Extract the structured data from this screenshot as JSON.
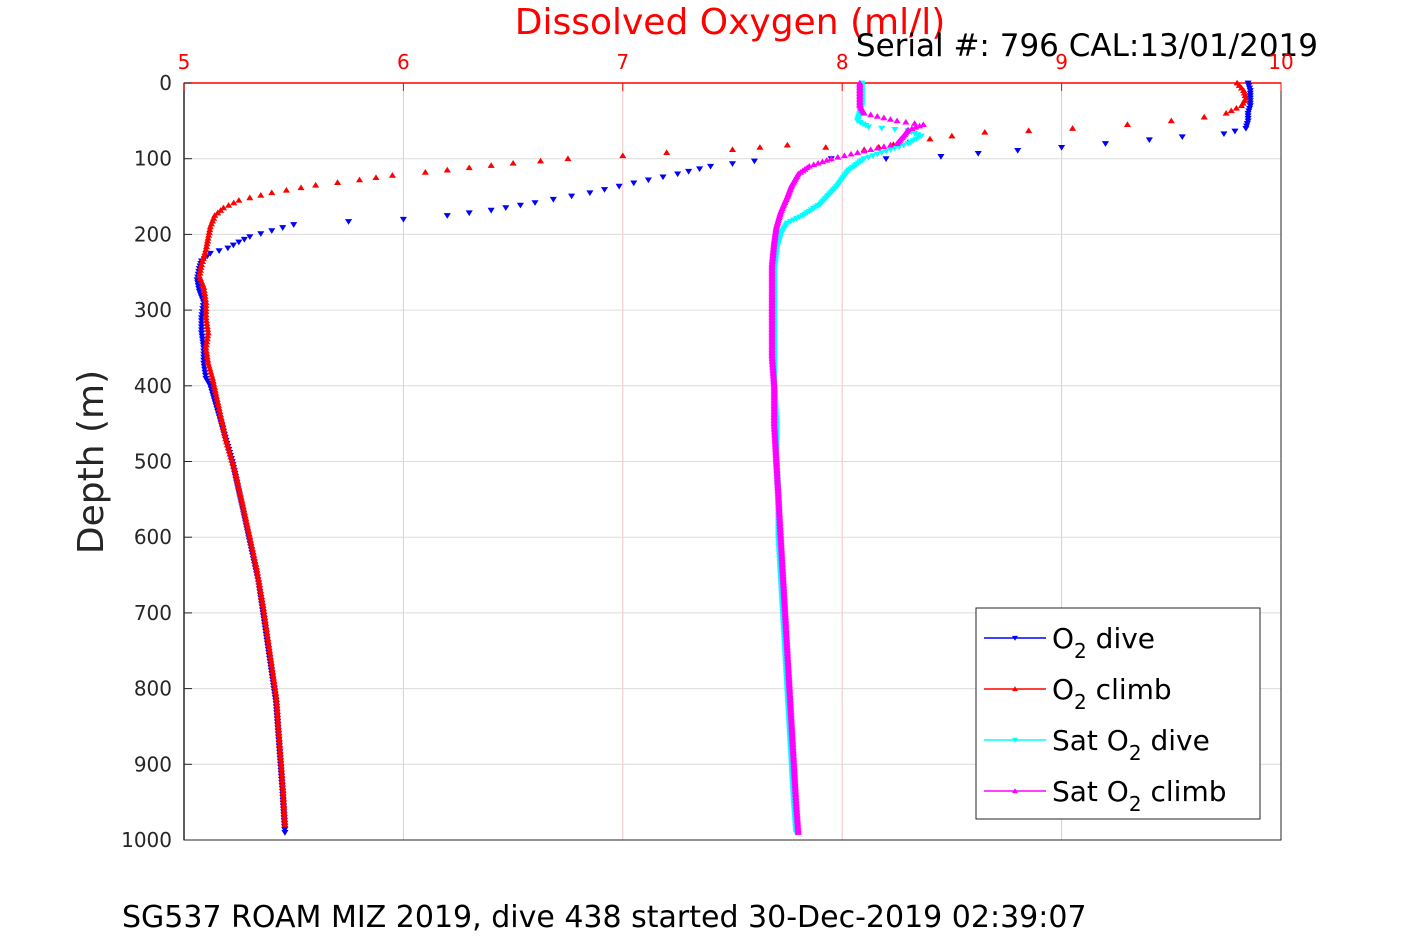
{
  "chart_data": {
    "type": "scatter",
    "title": "Dissolved Oxygen (ml/l)",
    "subtitle": "Serial #: 796  CAL:13/01/2019",
    "footer": "SG537 ROAM MIZ 2019, dive 438 started 30-Dec-2019 02:39:07",
    "xlabel": "Dissolved Oxygen (ml/l)",
    "ylabel": "Depth (m)",
    "xlim": [
      5,
      10
    ],
    "ylim": [
      0,
      1000
    ],
    "y_reversed": true,
    "x_axis_position": "top",
    "x_ticks": [
      "5",
      "6",
      "7",
      "8",
      "9",
      "10"
    ],
    "y_ticks": [
      "0",
      "100",
      "200",
      "300",
      "400",
      "500",
      "600",
      "700",
      "800",
      "900",
      "1000"
    ],
    "grid": true,
    "legend_position": "bottom-right",
    "series": [
      {
        "name": "O2 dive",
        "legend_main": "O",
        "legend_sub": "2",
        "legend_rest": " dive",
        "color": "#0000ff",
        "marker": "triangle-down",
        "points": [
          [
            9.85,
            0
          ],
          [
            9.86,
            10
          ],
          [
            9.86,
            20
          ],
          [
            9.86,
            30
          ],
          [
            9.85,
            40
          ],
          [
            9.85,
            50
          ],
          [
            9.84,
            60
          ],
          [
            9.74,
            67
          ],
          [
            9.55,
            71
          ],
          [
            9.4,
            75
          ],
          [
            9.2,
            80
          ],
          [
            9.0,
            85
          ],
          [
            8.8,
            89
          ],
          [
            8.62,
            93
          ],
          [
            8.45,
            97
          ],
          [
            8.2,
            100
          ],
          [
            7.95,
            100
          ],
          [
            7.6,
            103
          ],
          [
            7.4,
            110
          ],
          [
            7.25,
            120
          ],
          [
            7.05,
            132
          ],
          [
            6.85,
            145
          ],
          [
            6.6,
            158
          ],
          [
            6.4,
            168
          ],
          [
            6.2,
            175
          ],
          [
            6.0,
            180
          ],
          [
            5.75,
            183
          ],
          [
            5.5,
            187
          ],
          [
            5.4,
            195
          ],
          [
            5.3,
            203
          ],
          [
            5.25,
            210
          ],
          [
            5.2,
            218
          ],
          [
            5.12,
            225
          ],
          [
            5.08,
            235
          ],
          [
            5.07,
            245
          ],
          [
            5.06,
            260
          ],
          [
            5.07,
            275
          ],
          [
            5.09,
            290
          ],
          [
            5.08,
            310
          ],
          [
            5.08,
            330
          ],
          [
            5.09,
            350
          ],
          [
            5.09,
            370
          ],
          [
            5.1,
            390
          ],
          [
            5.12,
            400
          ],
          [
            5.15,
            430
          ],
          [
            5.18,
            460
          ],
          [
            5.22,
            500
          ],
          [
            5.25,
            540
          ],
          [
            5.28,
            580
          ],
          [
            5.31,
            620
          ],
          [
            5.34,
            660
          ],
          [
            5.36,
            700
          ],
          [
            5.38,
            740
          ],
          [
            5.4,
            780
          ],
          [
            5.42,
            820
          ],
          [
            5.43,
            860
          ],
          [
            5.44,
            900
          ],
          [
            5.45,
            940
          ],
          [
            5.46,
            990
          ]
        ]
      },
      {
        "name": "O2 climb",
        "legend_main": "O",
        "legend_sub": "2",
        "legend_rest": " climb",
        "color": "#ff0000",
        "marker": "triangle-up",
        "points": [
          [
            9.8,
            0
          ],
          [
            9.83,
            10
          ],
          [
            9.84,
            20
          ],
          [
            9.82,
            30
          ],
          [
            9.75,
            40
          ],
          [
            9.65,
            45
          ],
          [
            9.5,
            50
          ],
          [
            9.3,
            55
          ],
          [
            9.05,
            60
          ],
          [
            8.85,
            63
          ],
          [
            8.65,
            65
          ],
          [
            8.5,
            70
          ],
          [
            8.3,
            78
          ],
          [
            8.1,
            88
          ],
          [
            7.75,
            82
          ],
          [
            7.5,
            88
          ],
          [
            7.2,
            92
          ],
          [
            7.0,
            96
          ],
          [
            6.75,
            100
          ],
          [
            6.5,
            106
          ],
          [
            6.3,
            112
          ],
          [
            6.1,
            118
          ],
          [
            5.95,
            122
          ],
          [
            5.8,
            128
          ],
          [
            5.6,
            135
          ],
          [
            5.4,
            145
          ],
          [
            5.25,
            155
          ],
          [
            5.18,
            165
          ],
          [
            5.14,
            175
          ],
          [
            5.12,
            190
          ],
          [
            5.11,
            205
          ],
          [
            5.1,
            220
          ],
          [
            5.08,
            240
          ],
          [
            5.07,
            255
          ],
          [
            5.09,
            270
          ],
          [
            5.1,
            290
          ],
          [
            5.1,
            310
          ],
          [
            5.11,
            330
          ],
          [
            5.1,
            350
          ],
          [
            5.11,
            370
          ],
          [
            5.13,
            390
          ],
          [
            5.16,
            430
          ],
          [
            5.19,
            470
          ],
          [
            5.23,
            510
          ],
          [
            5.27,
            560
          ],
          [
            5.3,
            600
          ],
          [
            5.33,
            640
          ],
          [
            5.36,
            690
          ],
          [
            5.38,
            730
          ],
          [
            5.4,
            770
          ],
          [
            5.42,
            810
          ],
          [
            5.43,
            850
          ],
          [
            5.44,
            890
          ],
          [
            5.45,
            930
          ],
          [
            5.46,
            980
          ]
        ]
      },
      {
        "name": "Sat O2 dive",
        "legend_main": "Sat O",
        "legend_sub": "2",
        "legend_rest": " dive",
        "color": "#00ffff",
        "marker": "triangle-down",
        "points": [
          [
            8.09,
            0
          ],
          [
            8.09,
            10
          ],
          [
            8.09,
            20
          ],
          [
            8.09,
            30
          ],
          [
            8.08,
            40
          ],
          [
            8.07,
            50
          ],
          [
            8.12,
            58
          ],
          [
            8.3,
            63
          ],
          [
            8.36,
            70
          ],
          [
            8.3,
            80
          ],
          [
            8.2,
            90
          ],
          [
            8.1,
            100
          ],
          [
            8.03,
            115
          ],
          [
            7.98,
            135
          ],
          [
            7.9,
            160
          ],
          [
            7.82,
            175
          ],
          [
            7.75,
            185
          ],
          [
            7.72,
            200
          ],
          [
            7.7,
            220
          ],
          [
            7.69,
            250
          ],
          [
            7.69,
            300
          ],
          [
            7.69,
            350
          ],
          [
            7.69,
            400
          ],
          [
            7.7,
            450
          ],
          [
            7.7,
            500
          ],
          [
            7.71,
            550
          ],
          [
            7.71,
            600
          ],
          [
            7.72,
            650
          ],
          [
            7.73,
            700
          ],
          [
            7.74,
            750
          ],
          [
            7.75,
            800
          ],
          [
            7.76,
            850
          ],
          [
            7.77,
            900
          ],
          [
            7.78,
            950
          ],
          [
            7.79,
            990
          ]
        ]
      },
      {
        "name": "Sat O2 climb",
        "legend_main": "Sat O",
        "legend_sub": "2",
        "legend_rest": " climb",
        "color": "#ff00ff",
        "marker": "triangle-up",
        "points": [
          [
            8.08,
            0
          ],
          [
            8.08,
            10
          ],
          [
            8.08,
            20
          ],
          [
            8.08,
            30
          ],
          [
            8.1,
            40
          ],
          [
            8.25,
            50
          ],
          [
            8.37,
            55
          ],
          [
            8.3,
            62
          ],
          [
            8.28,
            70
          ],
          [
            8.25,
            80
          ],
          [
            8.1,
            90
          ],
          [
            7.95,
            100
          ],
          [
            7.85,
            110
          ],
          [
            7.8,
            120
          ],
          [
            7.77,
            135
          ],
          [
            7.75,
            150
          ],
          [
            7.72,
            170
          ],
          [
            7.7,
            190
          ],
          [
            7.69,
            210
          ],
          [
            7.68,
            240
          ],
          [
            7.68,
            280
          ],
          [
            7.68,
            320
          ],
          [
            7.68,
            360
          ],
          [
            7.69,
            400
          ],
          [
            7.69,
            450
          ],
          [
            7.7,
            500
          ],
          [
            7.71,
            550
          ],
          [
            7.72,
            600
          ],
          [
            7.73,
            650
          ],
          [
            7.74,
            700
          ],
          [
            7.75,
            750
          ],
          [
            7.76,
            800
          ],
          [
            7.77,
            850
          ],
          [
            7.78,
            900
          ],
          [
            7.79,
            950
          ],
          [
            7.8,
            990
          ]
        ]
      }
    ]
  }
}
